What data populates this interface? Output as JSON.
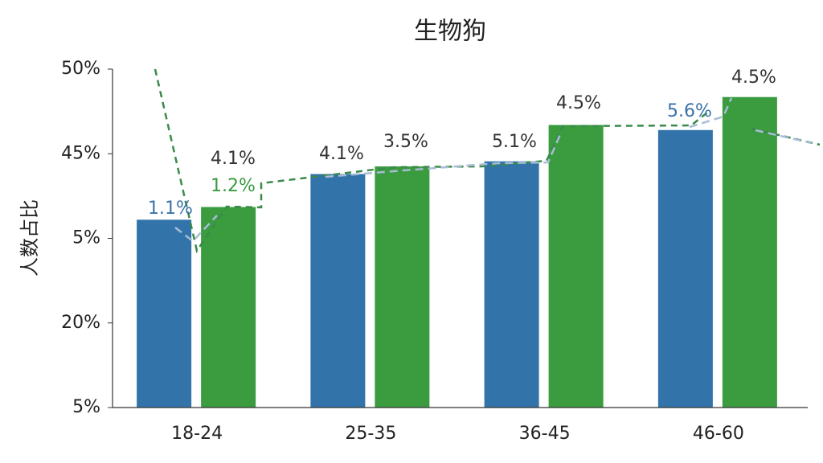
{
  "chart_data": {
    "type": "bar",
    "title": "生物狗",
    "y_label": "人数占比",
    "categories": [
      "18-24",
      "25-35",
      "36-45",
      "46-60"
    ],
    "series": [
      {
        "color": "#3274a9",
        "values": [
          2.22,
          2.76,
          2.91,
          3.28
        ]
      },
      {
        "color": "#3a9b3f",
        "values": [
          2.37,
          2.85,
          3.34,
          3.67
        ]
      }
    ],
    "ylim": [
      0,
      4
    ],
    "yticks": [
      {
        "value": 0,
        "label": "5%"
      },
      {
        "value": 1,
        "label": "20%"
      },
      {
        "value": 2,
        "label": "5%"
      },
      {
        "value": 3,
        "label": "45%"
      },
      {
        "value": 4,
        "label": "50%"
      }
    ],
    "annotations": [
      {
        "text": "1.1%",
        "color": "#3a72a8"
      },
      {
        "text": "4.1%",
        "color": "#333333"
      },
      {
        "text": "1.2%",
        "color": "#3a9b3f"
      },
      {
        "text": "4.1%",
        "color": "#333333"
      },
      {
        "text": "3.5%",
        "color": "#333333"
      },
      {
        "text": "5.1%",
        "color": "#333333"
      },
      {
        "text": "4.5%",
        "color": "#333333"
      },
      {
        "text": "5.6%",
        "color": "#3a72a8"
      },
      {
        "text": "4.5%",
        "color": "#333333"
      }
    ]
  }
}
